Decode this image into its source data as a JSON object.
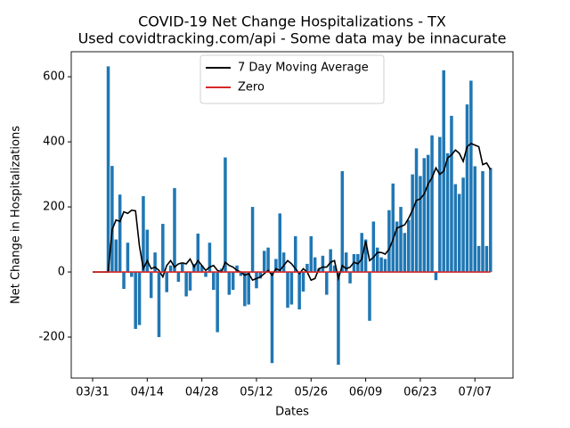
{
  "chart_data": {
    "type": "bar",
    "title": [
      "COVID-19 Net Change Hospitalizations - TX",
      "Used covidtracking.com/api - Some data may be innacurate"
    ],
    "x_label": "Dates",
    "y_label": "Net Change in Hospitalizations",
    "categories": [
      "03/31",
      null,
      null,
      null,
      null,
      null,
      null,
      null,
      null,
      null,
      null,
      null,
      null,
      null,
      "04/14",
      null,
      null,
      null,
      null,
      null,
      null,
      null,
      null,
      null,
      null,
      null,
      null,
      null,
      "04/28",
      null,
      null,
      null,
      null,
      null,
      null,
      null,
      null,
      null,
      null,
      null,
      null,
      null,
      "05/12",
      null,
      null,
      null,
      null,
      null,
      null,
      null,
      null,
      null,
      null,
      null,
      null,
      null,
      "05/26",
      null,
      null,
      null,
      null,
      null,
      null,
      null,
      null,
      null,
      null,
      null,
      null,
      null,
      "06/09",
      null,
      null,
      null,
      null,
      null,
      null,
      null,
      null,
      null,
      null,
      null,
      null,
      null,
      "06/23",
      null,
      null,
      null,
      null,
      null,
      null,
      null,
      null,
      null,
      null,
      null,
      null,
      null,
      "07/07",
      null,
      null,
      null,
      null
    ],
    "series": [
      {
        "type": "bar",
        "color": "#1f77b4",
        "values": [
          0,
          0,
          0,
          0,
          632,
          326,
          100,
          238,
          -52,
          90,
          -15,
          -175,
          -163,
          233,
          130,
          -80,
          60,
          -200,
          148,
          -62,
          20,
          258,
          -30,
          25,
          -75,
          -57,
          25,
          118,
          20,
          -15,
          90,
          -55,
          -185,
          10,
          352,
          -70,
          -55,
          20,
          -12,
          -105,
          -100,
          200,
          -50,
          -20,
          65,
          75,
          -280,
          40,
          180,
          60,
          -110,
          -100,
          110,
          -115,
          -60,
          25,
          110,
          45,
          10,
          50,
          -70,
          70,
          20,
          -285,
          310,
          60,
          -35,
          55,
          55,
          120,
          100,
          -150,
          155,
          75,
          45,
          40,
          190,
          272,
          155,
          200,
          120,
          160,
          300,
          380,
          295,
          350,
          360,
          420,
          -25,
          415,
          620,
          365,
          480,
          270,
          240,
          290,
          515,
          588,
          325,
          80,
          310,
          80,
          320
        ]
      },
      {
        "type": "line",
        "name": "7 Day Moving Average",
        "color": "#000000",
        "values": [
          0,
          0,
          0,
          0,
          0,
          130,
          160,
          155,
          185,
          180,
          190,
          188,
          80,
          10,
          35,
          10,
          15,
          5,
          -15,
          20,
          35,
          15,
          25,
          28,
          25,
          40,
          15,
          35,
          20,
          5,
          15,
          20,
          5,
          0,
          30,
          20,
          15,
          5,
          0,
          -10,
          -5,
          -25,
          -20,
          -15,
          -5,
          5,
          -10,
          10,
          5,
          20,
          35,
          25,
          10,
          -5,
          10,
          0,
          -25,
          -20,
          10,
          15,
          15,
          30,
          35,
          -20,
          20,
          10,
          15,
          30,
          25,
          40,
          95,
          35,
          45,
          60,
          60,
          55,
          70,
          100,
          135,
          140,
          145,
          165,
          190,
          220,
          225,
          240,
          270,
          290,
          320,
          300,
          310,
          350,
          360,
          375,
          365,
          340,
          385,
          395,
          390,
          385,
          330,
          335,
          315
        ]
      },
      {
        "type": "line",
        "name": "Zero",
        "color": "#d62728",
        "values": [
          0,
          0,
          0,
          0,
          0,
          0,
          0,
          0,
          0,
          0,
          0,
          0,
          0,
          0,
          0,
          0,
          0,
          0,
          0,
          0,
          0,
          0,
          0,
          0,
          0,
          0,
          0,
          0,
          0,
          0,
          0,
          0,
          0,
          0,
          0,
          0,
          0,
          0,
          0,
          0,
          0,
          0,
          0,
          0,
          0,
          0,
          0,
          0,
          0,
          0,
          0,
          0,
          0,
          0,
          0,
          0,
          0,
          0,
          0,
          0,
          0,
          0,
          0,
          0,
          0,
          0,
          0,
          0,
          0,
          0,
          0,
          0,
          0,
          0,
          0,
          0,
          0,
          0,
          0,
          0,
          0,
          0,
          0,
          0,
          0,
          0,
          0,
          0,
          0,
          0,
          0,
          0,
          0,
          0,
          0,
          0,
          0,
          0,
          0,
          0,
          0,
          0,
          0
        ]
      }
    ],
    "ylim": [
      -326,
      677
    ],
    "yticks": [
      -200,
      0,
      200,
      400,
      600
    ],
    "legend": "upper center"
  }
}
